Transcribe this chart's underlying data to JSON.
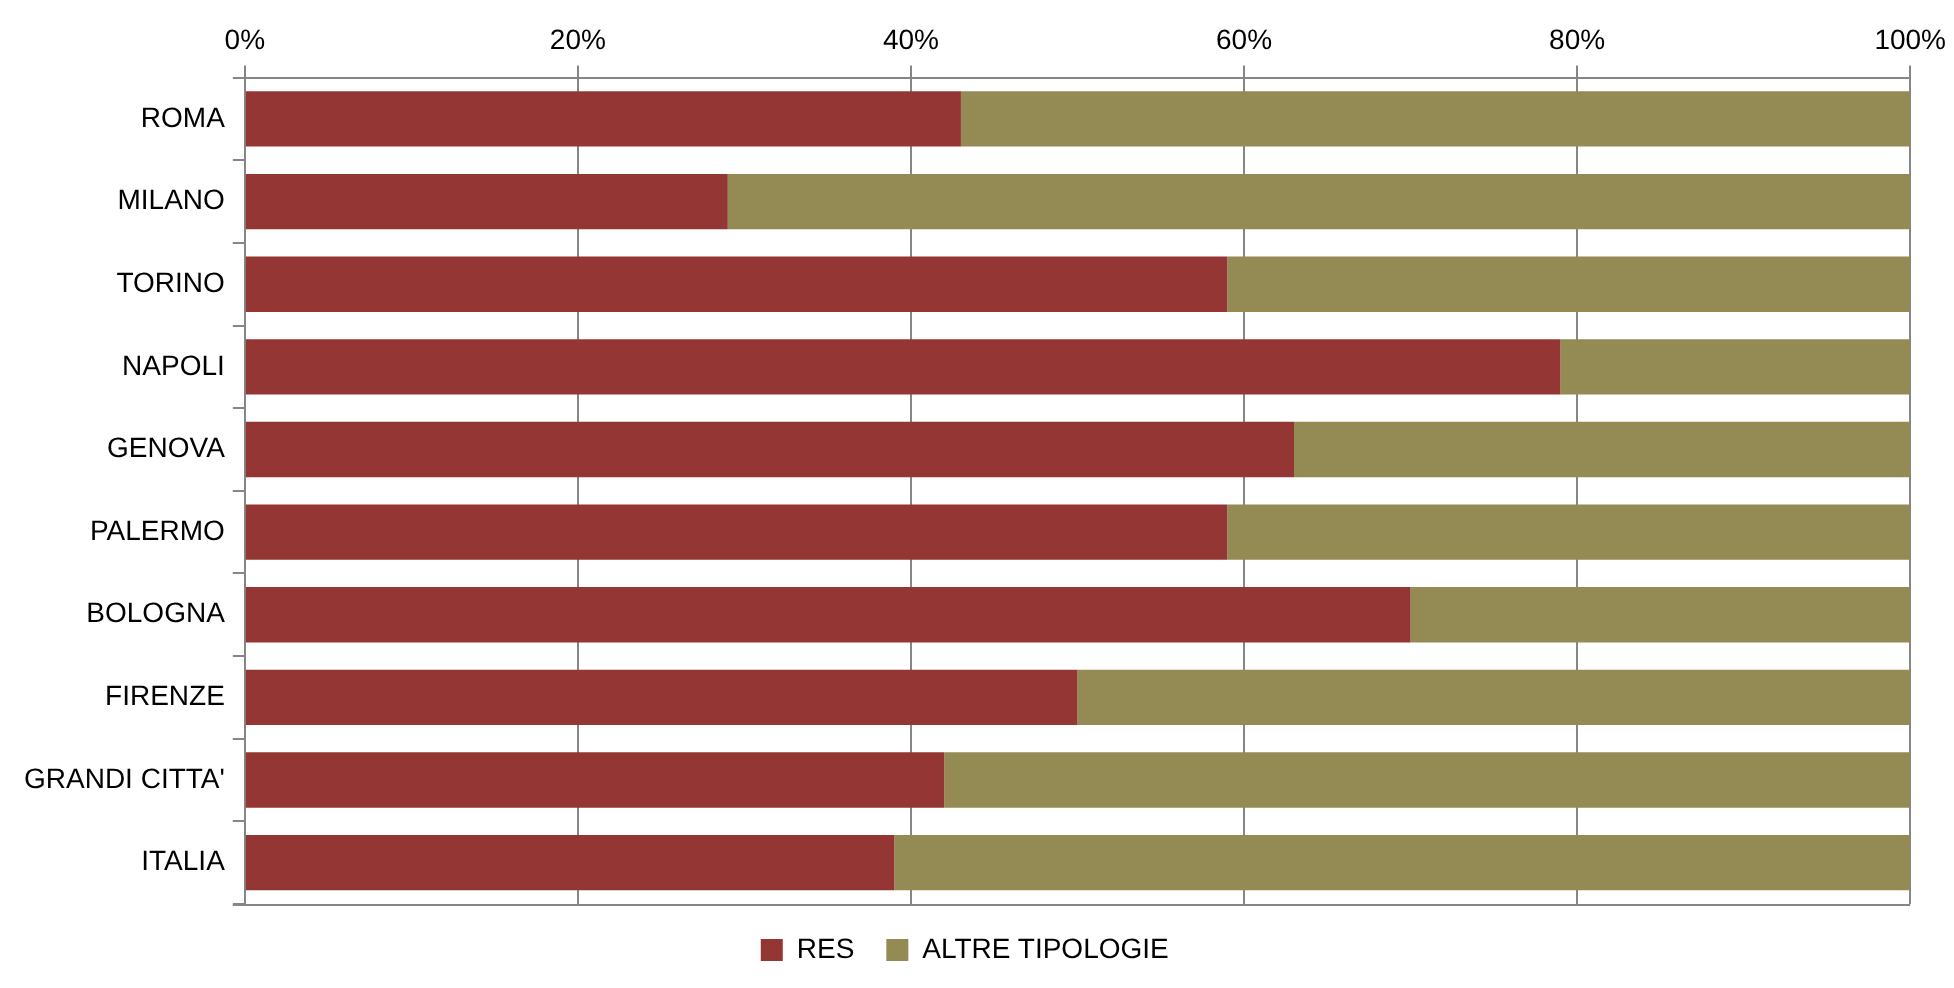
{
  "chart_data": {
    "type": "bar",
    "orientation": "horizontal",
    "stacked": true,
    "categories": [
      "ROMA",
      "MILANO",
      "TORINO",
      "NAPOLI",
      "GENOVA",
      "PALERMO",
      "BOLOGNA",
      "FIRENZE",
      "GRANDI CITTA'",
      "ITALIA"
    ],
    "series": [
      {
        "name": "RES",
        "color": "#943634",
        "values": [
          43,
          29,
          59,
          79,
          63,
          59,
          70,
          50,
          42,
          39
        ]
      },
      {
        "name": "ALTRE TIPOLOGIE",
        "color": "#948a54",
        "values": [
          57,
          71,
          41,
          21,
          37,
          41,
          30,
          50,
          58,
          61
        ]
      }
    ],
    "xlim": [
      0,
      100
    ],
    "xticks": [
      {
        "value": 0,
        "label": "0%"
      },
      {
        "value": 20,
        "label": "20%"
      },
      {
        "value": 40,
        "label": "40%"
      },
      {
        "value": 60,
        "label": "60%"
      },
      {
        "value": 80,
        "label": "80%"
      },
      {
        "value": 100,
        "label": "100%"
      }
    ],
    "grid": "x",
    "legend": "bottom"
  }
}
